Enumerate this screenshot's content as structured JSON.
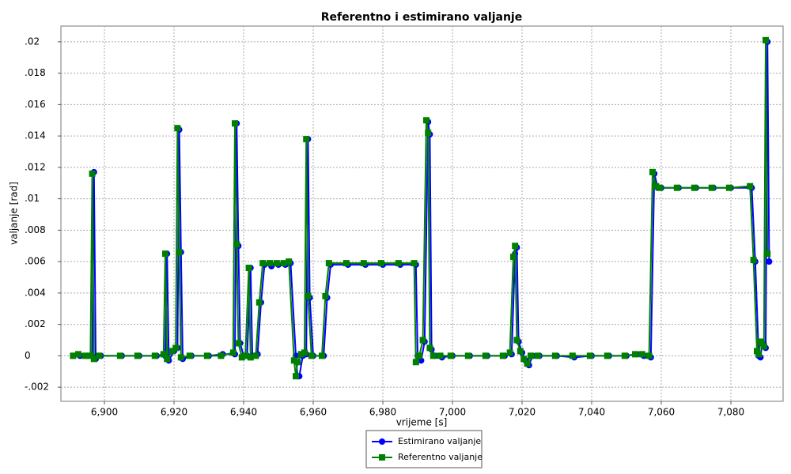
{
  "chart_data": {
    "type": "line",
    "title": "Referentno i estimirano valjanje",
    "x_label": "vrijeme [s]",
    "y_label": "valjanje [rad]",
    "xlim": [
      6887.5,
      7095
    ],
    "ylim": [
      -0.0029,
      0.021
    ],
    "xticks": [
      {
        "value": 6900,
        "label": "6,900"
      },
      {
        "value": 6920,
        "label": "6,920"
      },
      {
        "value": 6940,
        "label": "6,940"
      },
      {
        "value": 6960,
        "label": "6,960"
      },
      {
        "value": 6980,
        "label": "6,980"
      },
      {
        "value": 7000,
        "label": "7,000"
      },
      {
        "value": 7020,
        "label": "7,020"
      },
      {
        "value": 7040,
        "label": "7,040"
      },
      {
        "value": 7060,
        "label": "7,060"
      },
      {
        "value": 7080,
        "label": "7,080"
      }
    ],
    "yticks": [
      {
        "value": -0.002,
        "label": "-.002"
      },
      0,
      {
        "value": 0.002,
        "label": ".002"
      },
      {
        "value": 0.004,
        "label": ".004"
      },
      {
        "value": 0.006,
        "label": ".006"
      },
      {
        "value": 0.008,
        "label": ".008"
      },
      {
        "value": 0.01,
        "label": ".01"
      },
      {
        "value": 0.012,
        "label": ".012"
      },
      {
        "value": 0.014,
        "label": ".014"
      },
      {
        "value": 0.016,
        "label": ".016"
      },
      {
        "value": 0.018,
        "label": ".018"
      },
      {
        "value": 0.02,
        "label": ".02"
      }
    ],
    "grid": true,
    "legend": "bottom",
    "series": [
      {
        "name": "Estimirano valjanje",
        "color": "#0000ff",
        "marker": "circle",
        "x": [
          6891,
          6893,
          6895,
          6896.5,
          6897,
          6897.5,
          6899,
          6905,
          6910,
          6915,
          6917.5,
          6918,
          6918.5,
          6920,
          6921,
          6921.5,
          6922,
          6922.5,
          6925,
          6930,
          6934,
          6937.5,
          6938,
          6938.5,
          6939,
          6940,
          6941,
          6942,
          6942.5,
          6944,
          6945,
          6946,
          6948,
          6950,
          6952,
          6953.5,
          6955,
          6955.5,
          6956,
          6957,
          6958,
          6958.5,
          6959,
          6960,
          6963,
          6964,
          6965,
          6970,
          6975,
          6980,
          6985,
          6989.5,
          6990,
          6991,
          6992,
          6993,
          6993.5,
          6994,
          6995,
          6997,
          7000,
          7005,
          7010,
          7015,
          7017,
          7018,
          7018.5,
          7019,
          7020,
          7021,
          7022,
          7023,
          7025,
          7030,
          7035,
          7040,
          7045,
          7050,
          7053,
          7055,
          7057,
          7058,
          7059,
          7060,
          7065,
          7070,
          7075,
          7080,
          7086,
          7087,
          7088,
          7088.5,
          7089,
          7090,
          7090.5,
          7091
        ],
        "values": [
          0,
          0,
          0,
          0,
          0.0117,
          -0.0002,
          0,
          0,
          0,
          0,
          0,
          0.0065,
          -0.0003,
          0.0003,
          0.0005,
          0.0144,
          0.0066,
          -0.0002,
          0,
          0,
          0.0001,
          0.0001,
          0.0148,
          0.007,
          0.0008,
          0,
          0,
          0.0056,
          0,
          0.0001,
          0.0034,
          0.0058,
          0.0057,
          0.0058,
          0.0058,
          0.0059,
          0,
          -0.0013,
          -0.0013,
          0,
          0.0001,
          0.0138,
          0.0037,
          0,
          0,
          0.0037,
          0.0058,
          0.0058,
          0.0058,
          0.0058,
          0.0058,
          0.0058,
          0,
          -0.0003,
          0.0009,
          0.0149,
          0.0141,
          0.0004,
          0,
          -0.0001,
          0,
          0,
          0,
          0,
          0.0001,
          0.0065,
          0.0069,
          0.0009,
          0.0002,
          -0.0003,
          -0.0006,
          0,
          0,
          0,
          -0.0001,
          0,
          0,
          0,
          0.0001,
          0,
          -0.0001,
          0.0116,
          0.0107,
          0.0107,
          0.0107,
          0.0107,
          0.0107,
          0.0107,
          0.0107,
          0.006,
          0,
          -0.0001,
          0.0008,
          0.0005,
          0.02,
          0.006
        ]
      },
      {
        "name": "Referentno valjanje",
        "color": "#008000",
        "marker": "square",
        "x": [
          6891,
          6892.5,
          6894.5,
          6896,
          6896.5,
          6897,
          6898.5,
          6904.5,
          6909.5,
          6914.5,
          6917,
          6917.5,
          6918,
          6919.5,
          6920.5,
          6921,
          6921.5,
          6922,
          6924.5,
          6929.5,
          6933.5,
          6937,
          6937.5,
          6938,
          6938.5,
          6939.5,
          6940.5,
          6941.5,
          6942,
          6943.5,
          6944.5,
          6945.5,
          6947.5,
          6949.5,
          6951.5,
          6953,
          6954.5,
          6955,
          6955.5,
          6956.5,
          6957.5,
          6958,
          6958.5,
          6959.5,
          6962.5,
          6963.5,
          6964.5,
          6969.5,
          6974.5,
          6979.5,
          6984.5,
          6989,
          6989.5,
          6990.5,
          6991.5,
          6992.5,
          6993,
          6993.5,
          6994.5,
          6996.5,
          6999.5,
          7004.5,
          7009.5,
          7014.5,
          7016.5,
          7017.5,
          7018,
          7018.5,
          7019.5,
          7020.5,
          7021.5,
          7022.5,
          7024.5,
          7029.5,
          7034.5,
          7039.5,
          7044.5,
          7049.5,
          7052.5,
          7054.5,
          7056.5,
          7057.5,
          7058.5,
          7059.5,
          7064.5,
          7069.5,
          7074.5,
          7079.5,
          7085.5,
          7086.5,
          7087.5,
          7088,
          7088.5,
          7089.5,
          7090,
          7090.5
        ],
        "values": [
          0,
          0.0001,
          0,
          0,
          0.0116,
          -0.0002,
          0,
          0,
          0,
          0,
          0.0001,
          0.0065,
          -0.0002,
          0.0003,
          0.0005,
          0.0145,
          0.0066,
          -0.0001,
          0,
          0,
          0,
          0.0002,
          0.0148,
          0.0071,
          0.0008,
          -0.0001,
          0,
          0.0056,
          -0.0001,
          0,
          0.0034,
          0.0059,
          0.0059,
          0.0059,
          0.0059,
          0.006,
          -0.0003,
          -0.0013,
          -0.0004,
          0.0001,
          0.0002,
          0.0138,
          0.0038,
          0,
          0,
          0.0038,
          0.0059,
          0.0059,
          0.0059,
          0.0059,
          0.0059,
          0.0059,
          -0.0004,
          0,
          0.001,
          0.015,
          0.0142,
          0.0005,
          0,
          0,
          0,
          0,
          0,
          0,
          0.0002,
          0.0063,
          0.007,
          0.001,
          0.0003,
          -0.0002,
          -0.0005,
          0,
          0,
          0,
          0,
          0,
          0,
          0,
          0.0001,
          0.0001,
          0,
          0.0117,
          0.0108,
          0.0107,
          0.0107,
          0.0107,
          0.0107,
          0.0107,
          0.0108,
          0.0061,
          0.0003,
          0.0001,
          0.0009,
          0.0006,
          0.0201,
          0.0065
        ]
      }
    ]
  }
}
